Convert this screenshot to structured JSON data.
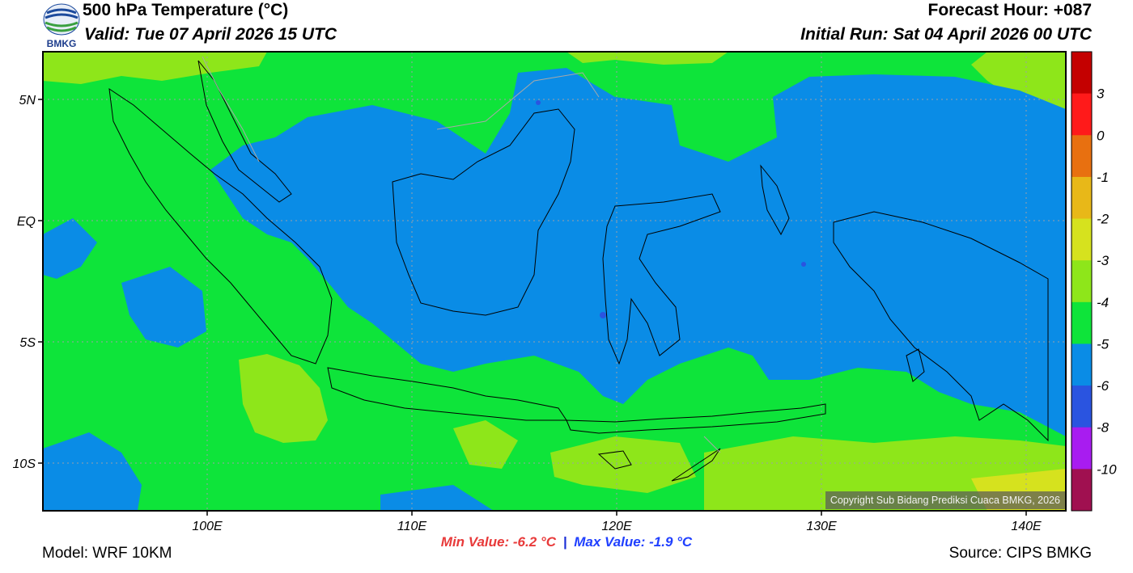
{
  "header": {
    "logo_text": "BMKG",
    "title": "500 hPa Temperature (°C)",
    "valid": "Valid: Tue 07 April 2026 15 UTC",
    "forecast_hour": "Forecast Hour: +087",
    "initial_run": "Initial Run: Sat 04 April 2026 00 UTC"
  },
  "map": {
    "x_ticks": [
      "100E",
      "110E",
      "120E",
      "130E",
      "140E"
    ],
    "y_ticks": [
      "5N",
      "EQ",
      "5S",
      "10S"
    ],
    "copyright": "Copyright Sub Bidang Prediksi Cuaca BMKG, 2026"
  },
  "legend": {
    "levels": [
      "3",
      "0",
      "-1",
      "-2",
      "-3",
      "-4",
      "-5",
      "-6",
      "-8",
      "-10"
    ],
    "colors": [
      "#c40000",
      "#ff1a1a",
      "#e87010",
      "#e8b818",
      "#d6e21e",
      "#8ee61a",
      "#0ee43a",
      "#0a8ce6",
      "#2a54e0",
      "#a81cf0",
      "#a01050"
    ]
  },
  "stats": {
    "min_label": "Min Value: -6.2 °C",
    "separator": "|",
    "max_label": "Max Value: -1.9 °C"
  },
  "footer": {
    "model": "Model: WRF 10KM",
    "source": "Source: CIPS BMKG"
  }
}
